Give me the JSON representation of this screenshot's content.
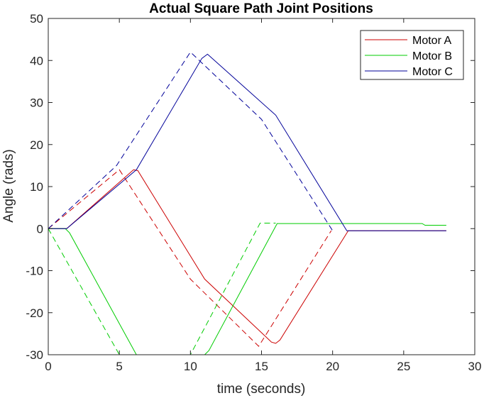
{
  "chart_data": {
    "type": "line",
    "title": "Actual Square Path Joint Positions",
    "xlabel": "time (seconds)",
    "ylabel": "Angle (rads)",
    "xlim": [
      0,
      30
    ],
    "ylim": [
      -30,
      50
    ],
    "xticks": [
      0,
      5,
      10,
      15,
      20,
      25,
      30
    ],
    "yticks": [
      -30,
      -20,
      -10,
      0,
      10,
      20,
      30,
      40,
      50
    ],
    "grid": false,
    "legend_position": "top-right",
    "legend": [
      "Motor A",
      "Motor B",
      "Motor C"
    ],
    "colors": {
      "Motor A": "#cc0000",
      "Motor B": "#00cc00",
      "Motor C": "#000099"
    },
    "series": [
      {
        "name": "Motor A",
        "style": "solid",
        "x": [
          0,
          1.3,
          6.0,
          6.3,
          11.0,
          15.7,
          16.0,
          16.3,
          21.1,
          28.0
        ],
        "y": [
          0,
          0,
          14.0,
          13.8,
          -12.0,
          -27.0,
          -27.3,
          -26.5,
          -0.5,
          -0.5
        ]
      },
      {
        "name": "Motor A",
        "style": "dashed",
        "x": [
          0,
          5.0,
          10.0,
          14.8,
          19.9
        ],
        "y": [
          0,
          14.0,
          -12.0,
          -28.0,
          -0.5
        ]
      },
      {
        "name": "Motor B",
        "style": "solid",
        "x": [
          0,
          1.2,
          1.5,
          6.2,
          11.0,
          11.3,
          16.1,
          26.3,
          26.5,
          28.0
        ],
        "y": [
          0,
          0,
          -1.0,
          -30,
          -30,
          -29.0,
          1.2,
          1.2,
          0.8,
          0.8
        ]
      },
      {
        "name": "Motor B",
        "style": "dashed",
        "x": [
          0,
          5.0,
          10.0,
          14.9,
          16.0
        ],
        "y": [
          0,
          -30,
          -30,
          1.3,
          1.3
        ]
      },
      {
        "name": "Motor C",
        "style": "solid",
        "x": [
          0,
          1.3,
          6.2,
          9.5,
          10.8,
          11.2,
          16.0,
          21.0,
          28.0
        ],
        "y": [
          0,
          0,
          14.0,
          33.0,
          40.5,
          41.5,
          27.0,
          -0.5,
          -0.5
        ]
      },
      {
        "name": "Motor C",
        "style": "dashed",
        "x": [
          0,
          4.8,
          10.0,
          15.0,
          20.0
        ],
        "y": [
          0,
          15.0,
          42.0,
          26.0,
          -0.5
        ]
      }
    ]
  }
}
